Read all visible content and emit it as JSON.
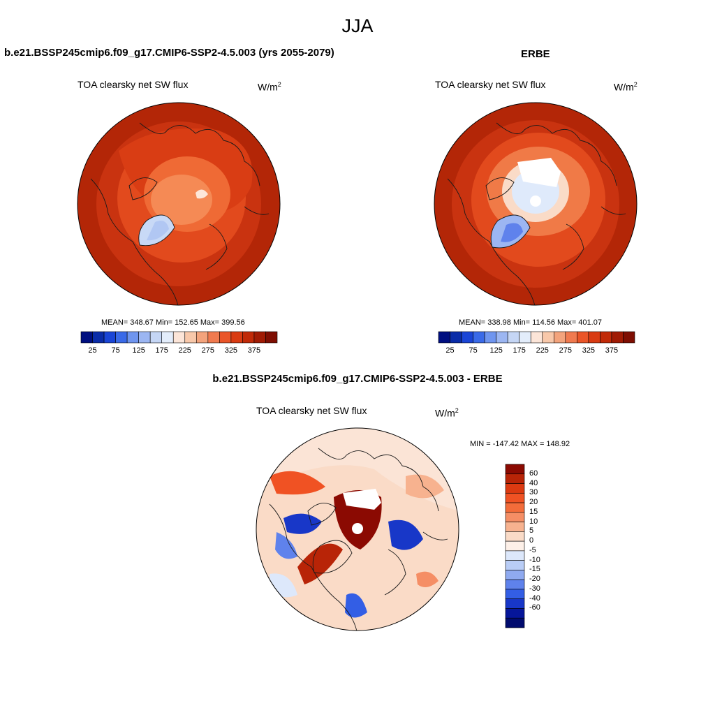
{
  "figure": {
    "title": "JJA"
  },
  "panels": {
    "model": {
      "title": "b.e21.BSSP245cmip6.f09_g17.CMIP6-SSP2-4.5.003 (yrs 2055-2079)",
      "variable": "TOA clearsky net SW flux",
      "units_base": "W/m",
      "units_exp": "2",
      "stats": "MEAN= 348.67  Min= 152.65  Max= 399.56"
    },
    "obs": {
      "title": "ERBE",
      "variable": "TOA clearsky net SW flux",
      "units_base": "W/m",
      "units_exp": "2",
      "stats": "MEAN= 338.98  Min= 114.56  Max= 401.07"
    },
    "diff": {
      "title": "b.e21.BSSP245cmip6.f09_g17.CMIP6-SSP2-4.5.003 - ERBE",
      "variable": "TOA clearsky net SW flux",
      "units_base": "W/m",
      "units_exp": "2",
      "stats": "MIN = -147.42 MAX = 148.92"
    }
  },
  "colorbars": {
    "absolute": {
      "labels": [
        "25",
        "75",
        "125",
        "175",
        "225",
        "275",
        "325",
        "375"
      ],
      "colors": [
        "#000f80",
        "#0a2ca8",
        "#1a45d6",
        "#3a6ae8",
        "#6f95ef",
        "#9cb6f2",
        "#c5d6f5",
        "#e3edfb",
        "#fce5d8",
        "#f8c8aa",
        "#f3a37c",
        "#f07a4f",
        "#ea5528",
        "#d93b12",
        "#c12a08",
        "#a01b04",
        "#7e0e02"
      ]
    },
    "difference": {
      "labels": [
        "60",
        "40",
        "30",
        "20",
        "15",
        "10",
        "5",
        "0",
        "-5",
        "-10",
        "-15",
        "-20",
        "-30",
        "-40",
        "-60"
      ],
      "colors": [
        "#8b0a02",
        "#b82407",
        "#dc3a11",
        "#f05223",
        "#f36c3a",
        "#f58e65",
        "#f7b28f",
        "#fadbc7",
        "#fdf0e8",
        "#dde8fb",
        "#b9cdf6",
        "#8faaf0",
        "#5f82ec",
        "#335ee5",
        "#1837c8",
        "#06169a",
        "#010b6e"
      ]
    }
  }
}
